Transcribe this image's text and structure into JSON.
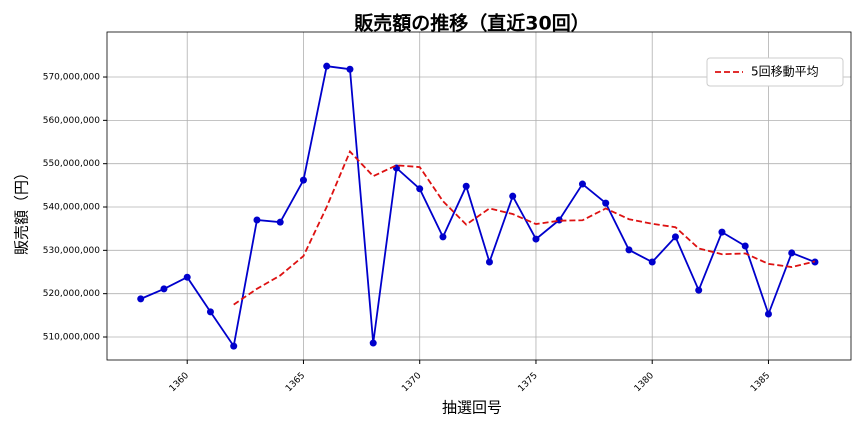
{
  "chart_data": {
    "type": "line",
    "title": "販売額の推移（直近30回）",
    "x_label": "抽選回号",
    "y_label": "販売額（円）",
    "x": [
      1358,
      1359,
      1360,
      1361,
      1362,
      1363,
      1364,
      1365,
      1366,
      1367,
      1368,
      1369,
      1370,
      1371,
      1372,
      1373,
      1374,
      1375,
      1376,
      1377,
      1378,
      1379,
      1380,
      1381,
      1382,
      1383,
      1384,
      1385,
      1386,
      1387
    ],
    "series": [
      {
        "color": "#0000cc",
        "marker": true,
        "linestyle": "solid",
        "values": [
          518800000,
          521100000,
          523800000,
          515800000,
          507900000,
          537000000,
          536500000,
          546200000,
          572500000,
          571800000,
          508600000,
          549000000,
          544200000,
          533100000,
          544800000,
          527300000,
          542500000,
          532600000,
          537000000,
          545300000,
          540900000,
          530100000,
          527300000,
          533100000,
          520800000,
          534200000,
          531000000,
          515300000,
          529400000,
          527300000
        ]
      },
      {
        "name": "5回移動平均",
        "color": "#dd1111",
        "marker": false,
        "linestyle": "dashed",
        "values": [
          null,
          null,
          null,
          null,
          517480000,
          521120000,
          524200000,
          528680000,
          540020000,
          552800000,
          547120000,
          549620000,
          549220000,
          541340000,
          535940000,
          539680000,
          538380000,
          536060000,
          536840000,
          536940000,
          539660000,
          537180000,
          536120000,
          535340000,
          530440000,
          529100000,
          529280000,
          526880000,
          526140000,
          527440000
        ]
      }
    ],
    "xlim": [
      1356.55,
      1388.55
    ],
    "xticks": [
      1360,
      1365,
      1370,
      1375,
      1380,
      1385
    ],
    "ylim": [
      504690000,
      580390000
    ],
    "yticks": [
      {
        "value": 510000000,
        "label": "510,000,000"
      },
      {
        "value": 520000000,
        "label": "520,000,000"
      },
      {
        "value": 530000000,
        "label": "530,000,000"
      },
      {
        "value": 540000000,
        "label": "540,000,000"
      },
      {
        "value": 550000000,
        "label": "550,000,000"
      },
      {
        "value": 560000000,
        "label": "560,000,000"
      },
      {
        "value": 570000000,
        "label": "570,000,000"
      }
    ],
    "grid": true,
    "legend": "upper right"
  }
}
